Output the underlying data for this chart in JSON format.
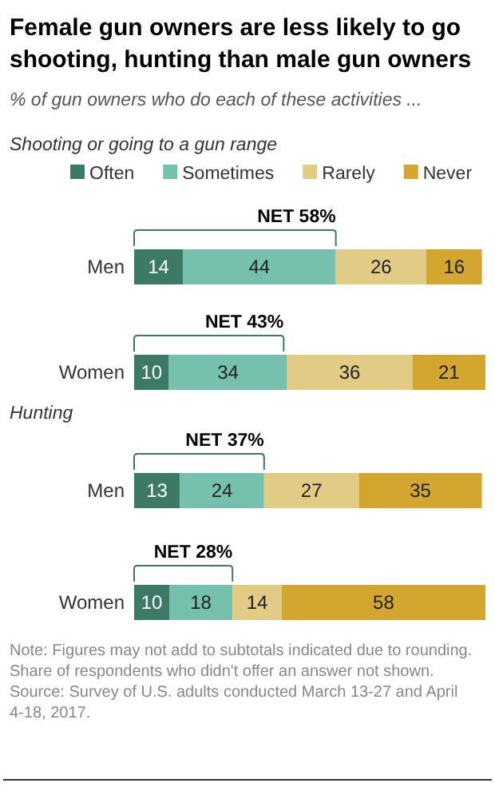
{
  "chart_data": [
    {
      "type": "bar",
      "orientation": "horizontal",
      "stacked": true,
      "data_labels": true,
      "legend": "top",
      "title": "Female gun owners are less likely to go shooting, hunting than male gun owners",
      "subtitle": "% of gun owners who do each of these activities ...",
      "categories": [
        "Men",
        "Women"
      ],
      "series": [
        {
          "name": "Often",
          "color": "#3d7a66",
          "values": [
            14,
            10
          ]
        },
        {
          "name": "Sometimes",
          "color": "#76c0ae",
          "values": [
            44,
            34
          ]
        },
        {
          "name": "Rarely",
          "color": "#e2cb85",
          "values": [
            26,
            36
          ]
        },
        {
          "name": "Never",
          "color": "#d2a62f",
          "values": [
            16,
            21
          ]
        }
      ],
      "annotations": [
        "Shooting or going to a gun range",
        {
          "text": "NET 58%",
          "x": 58,
          "y": "Men"
        },
        {
          "text": "NET 43%",
          "x": 43,
          "y": "Women"
        }
      ]
    },
    {
      "type": "bar",
      "orientation": "horizontal",
      "stacked": true,
      "data_labels": true,
      "title": "Hunting",
      "categories": [
        "Men",
        "Women"
      ],
      "series": [
        {
          "color": "#3d7a66",
          "values": [
            13,
            10
          ]
        },
        {
          "color": "#76c0ae",
          "values": [
            24,
            18
          ]
        },
        {
          "color": "#e2cb85",
          "values": [
            27,
            14
          ]
        },
        {
          "color": "#d2a62f",
          "values": [
            35,
            58
          ]
        }
      ],
      "annotations": [
        {
          "text": "NET 37%",
          "x": 37,
          "y": "Men"
        },
        {
          "text": "NET 28%",
          "x": 28,
          "y": "Women"
        },
        "Note: Figures may not add to subtotals indicated due to rounding. Share of respondents who didn't offer an answer not shown.",
        "Source: Survey of U.S. adults conducted March 13-27 and April 4-18, 2017."
      ]
    }
  ]
}
